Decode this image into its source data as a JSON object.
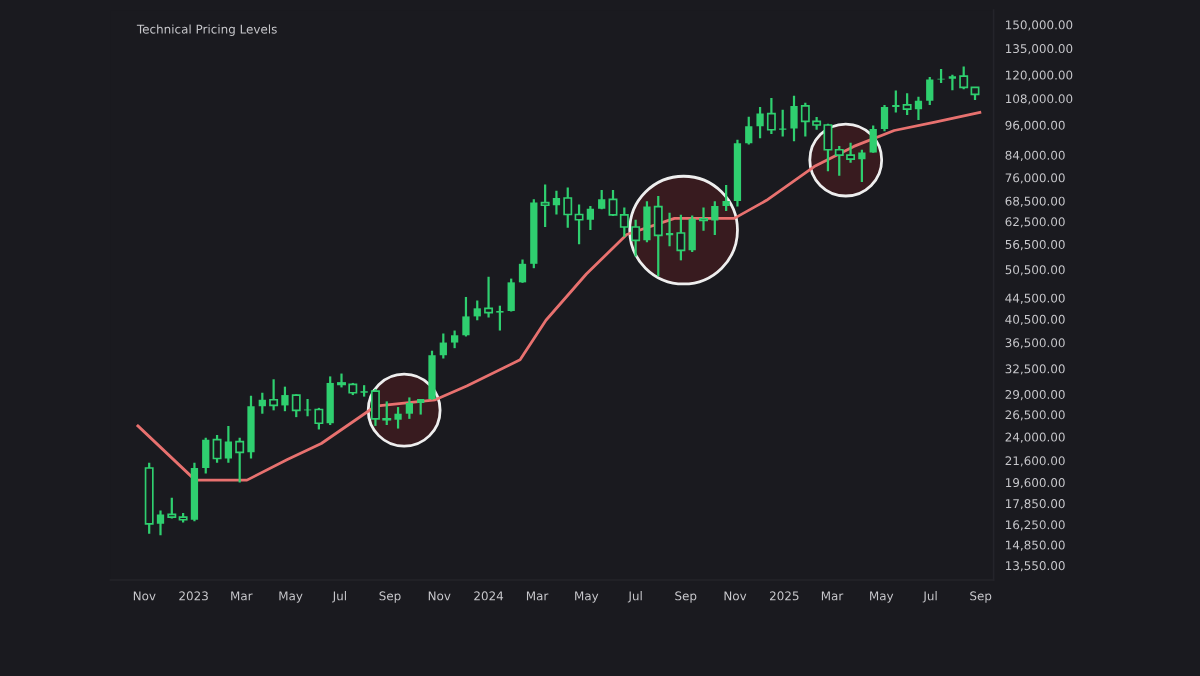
{
  "chart_data": {
    "type": "candlestick",
    "title": "Technical Pricing Levels",
    "x": [
      "2022-11-07",
      "2022-11-21",
      "2022-12-05",
      "2022-12-19",
      "2023-01-02",
      "2023-01-16",
      "2023-01-30",
      "2023-02-13",
      "2023-02-27",
      "2023-03-13",
      "2023-03-27",
      "2023-04-10",
      "2023-04-24",
      "2023-05-08",
      "2023-05-22",
      "2023-06-05",
      "2023-06-19",
      "2023-07-03",
      "2023-07-17",
      "2023-07-31",
      "2023-08-14",
      "2023-08-28",
      "2023-09-11",
      "2023-09-25",
      "2023-10-09",
      "2023-10-23",
      "2023-11-06",
      "2023-11-20",
      "2023-12-04",
      "2023-12-18",
      "2024-01-01",
      "2024-01-15",
      "2024-01-29",
      "2024-02-12",
      "2024-02-26",
      "2024-03-11",
      "2024-03-25",
      "2024-04-08",
      "2024-04-22",
      "2024-05-06",
      "2024-05-20",
      "2024-06-03",
      "2024-06-17",
      "2024-07-01",
      "2024-07-15",
      "2024-07-29",
      "2024-08-12",
      "2024-08-26",
      "2024-09-09",
      "2024-09-23",
      "2024-10-07",
      "2024-10-21",
      "2024-11-04",
      "2024-11-18",
      "2024-12-02",
      "2024-12-16",
      "2024-12-30",
      "2025-01-13",
      "2025-01-27",
      "2025-02-10",
      "2025-02-24",
      "2025-03-10",
      "2025-03-24",
      "2025-04-07",
      "2025-04-21",
      "2025-05-05",
      "2025-05-19",
      "2025-06-02",
      "2025-06-16",
      "2025-06-30",
      "2025-07-14",
      "2025-07-28",
      "2025-08-11",
      "2025-08-25"
    ],
    "ohlc": [
      [
        20900,
        21400,
        15600,
        16300
      ],
      [
        16300,
        17300,
        15500,
        17000
      ],
      [
        17000,
        18300,
        16700,
        16800
      ],
      [
        16800,
        17100,
        16400,
        16600
      ],
      [
        16600,
        21400,
        16500,
        20900
      ],
      [
        20900,
        23900,
        20400,
        23700
      ],
      [
        23700,
        24200,
        21400,
        21800
      ],
      [
        21800,
        25200,
        21400,
        23500
      ],
      [
        23500,
        23900,
        19600,
        22400
      ],
      [
        22400,
        28800,
        21800,
        27500
      ],
      [
        27500,
        29200,
        26600,
        28300
      ],
      [
        28300,
        31000,
        27000,
        27600
      ],
      [
        27600,
        30000,
        26900,
        28900
      ],
      [
        28900,
        29000,
        26200,
        27000
      ],
      [
        27000,
        28400,
        26300,
        27100
      ],
      [
        27100,
        27300,
        24800,
        25500
      ],
      [
        25500,
        31400,
        25300,
        30500
      ],
      [
        30500,
        31800,
        29900,
        30300
      ],
      [
        30300,
        30500,
        28900,
        29200
      ],
      [
        29200,
        30200,
        28700,
        29400
      ],
      [
        29400,
        29700,
        25200,
        26000
      ],
      [
        26000,
        28100,
        25300,
        25900
      ],
      [
        25900,
        27400,
        24900,
        26600
      ],
      [
        26600,
        28600,
        26000,
        27900
      ],
      [
        27900,
        28400,
        26500,
        28400
      ],
      [
        28400,
        35200,
        28300,
        34500
      ],
      [
        34500,
        38000,
        34000,
        36500
      ],
      [
        36500,
        38500,
        35600,
        37700
      ],
      [
        37700,
        44700,
        37500,
        41000
      ],
      [
        41000,
        44000,
        40300,
        42500
      ],
      [
        42500,
        48900,
        40800,
        41700
      ],
      [
        41700,
        43000,
        38500,
        42000
      ],
      [
        42000,
        48500,
        41900,
        47700
      ],
      [
        47700,
        52800,
        47600,
        51800
      ],
      [
        51800,
        69000,
        50800,
        68000
      ],
      [
        68000,
        73700,
        61000,
        67200
      ],
      [
        67200,
        71700,
        64500,
        69400
      ],
      [
        69400,
        72700,
        60800,
        64500
      ],
      [
        64500,
        67400,
        56500,
        63000
      ],
      [
        63000,
        67000,
        60200,
        66200
      ],
      [
        66200,
        71900,
        66000,
        69000
      ],
      [
        69000,
        71900,
        64100,
        64400
      ],
      [
        64400,
        66500,
        58400,
        61000
      ],
      [
        61000,
        63000,
        53500,
        57500
      ],
      [
        57500,
        68400,
        57000,
        66800
      ],
      [
        66800,
        70000,
        49000,
        58800
      ],
      [
        58800,
        65000,
        56000,
        59400
      ],
      [
        59400,
        64400,
        52600,
        55000
      ],
      [
        55000,
        64200,
        54600,
        63300
      ],
      [
        63300,
        66500,
        60000,
        62800
      ],
      [
        62800,
        68400,
        58900,
        67000
      ],
      [
        67000,
        73500,
        65500,
        68500
      ],
      [
        68500,
        89900,
        66800,
        88500
      ],
      [
        88500,
        99600,
        88000,
        95500
      ],
      [
        95500,
        104000,
        90500,
        101000
      ],
      [
        101000,
        108300,
        92200,
        94000
      ],
      [
        94000,
        102700,
        91200,
        94500
      ],
      [
        94500,
        109300,
        89300,
        104500
      ],
      [
        104500,
        106000,
        91200,
        97600
      ],
      [
        97600,
        99500,
        94000,
        96000
      ],
      [
        96000,
        96500,
        78200,
        86000
      ],
      [
        86000,
        87500,
        76600,
        84000
      ],
      [
        84000,
        88700,
        81200,
        82500
      ],
      [
        82500,
        86000,
        74500,
        85000
      ],
      [
        85000,
        95800,
        84900,
        94300
      ],
      [
        94300,
        105000,
        93400,
        104000
      ],
      [
        104000,
        111900,
        101500,
        105000
      ],
      [
        105000,
        110600,
        100400,
        103000
      ],
      [
        103000,
        108900,
        98200,
        107000
      ],
      [
        107000,
        118900,
        105000,
        117500
      ],
      [
        117500,
        123200,
        115700,
        118000
      ],
      [
        118000,
        120000,
        112000,
        119300
      ],
      [
        119300,
        124500,
        112500,
        113500
      ],
      [
        113500,
        113700,
        107300,
        110000
      ]
    ],
    "color": "#2fcf6f",
    "series": [
      {
        "type": "line",
        "color": "#e8716f",
        "x": [
          "2022-10-24",
          "2023-01-03",
          "2023-03-08",
          "2023-04-27",
          "2023-06-08",
          "2023-08-14",
          "2023-10-27",
          "2023-12-05",
          "2024-02-09",
          "2024-03-12",
          "2024-05-01",
          "2024-06-20",
          "2024-08-18",
          "2024-10-31",
          "2024-12-10",
          "2025-02-07",
          "2025-03-28",
          "2025-05-17",
          "2025-07-05",
          "2025-08-31"
        ],
        "values": [
          25200,
          19800,
          19800,
          21700,
          23300,
          27500,
          28300,
          30100,
          33800,
          40300,
          49500,
          59000,
          63400,
          63400,
          68700,
          79800,
          87300,
          93700,
          97100,
          101500
        ]
      }
    ],
    "log": "y",
    "xlim": [
      "2022-09-20",
      "2025-09-17"
    ],
    "xticks": [
      {
        "value": "2022-11-01",
        "label": "Nov"
      },
      {
        "value": "2023-01-01",
        "label": "2023"
      },
      {
        "value": "2023-03-01",
        "label": "Mar"
      },
      {
        "value": "2023-05-01",
        "label": "May"
      },
      {
        "value": "2023-07-01",
        "label": "Jul"
      },
      {
        "value": "2023-09-01",
        "label": "Sep"
      },
      {
        "value": "2023-11-01",
        "label": "Nov"
      },
      {
        "value": "2024-01-01",
        "label": "2024"
      },
      {
        "value": "2024-03-01",
        "label": "Mar"
      },
      {
        "value": "2024-05-01",
        "label": "May"
      },
      {
        "value": "2024-07-01",
        "label": "Jul"
      },
      {
        "value": "2024-09-01",
        "label": "Sep"
      },
      {
        "value": "2024-11-01",
        "label": "Nov"
      },
      {
        "value": "2025-01-01",
        "label": "2025"
      },
      {
        "value": "2025-03-01",
        "label": "Mar"
      },
      {
        "value": "2025-05-01",
        "label": "May"
      },
      {
        "value": "2025-07-01",
        "label": "Jul"
      },
      {
        "value": "2025-09-01",
        "label": "Sep"
      }
    ],
    "ylim": [
      12700,
      160000
    ],
    "yticks": [
      {
        "value": 13550,
        "label": "13,550.00"
      },
      {
        "value": 14850,
        "label": "14,850.00"
      },
      {
        "value": 16250,
        "label": "16,250.00"
      },
      {
        "value": 17850,
        "label": "17,850.00"
      },
      {
        "value": 19600,
        "label": "19,600.00"
      },
      {
        "value": 21600,
        "label": "21,600.00"
      },
      {
        "value": 24000,
        "label": "24,000.00"
      },
      {
        "value": 26500,
        "label": "26,500.00"
      },
      {
        "value": 29000,
        "label": "29,000.00"
      },
      {
        "value": 32500,
        "label": "32,500.00"
      },
      {
        "value": 36500,
        "label": "36,500.00"
      },
      {
        "value": 40500,
        "label": "40,500.00"
      },
      {
        "value": 44500,
        "label": "44,500.00"
      },
      {
        "value": 50500,
        "label": "50,500.00"
      },
      {
        "value": 56500,
        "label": "56,500.00"
      },
      {
        "value": 62500,
        "label": "62,500.00"
      },
      {
        "value": 68500,
        "label": "68,500.00"
      },
      {
        "value": 76000,
        "label": "76,000.00"
      },
      {
        "value": 84000,
        "label": "84,000.00"
      },
      {
        "value": 96000,
        "label": "96,000.00"
      },
      {
        "value": 108000,
        "label": "108,000.00"
      },
      {
        "value": 120000,
        "label": "120,000.00"
      },
      {
        "value": 135000,
        "label": "135,000.00"
      },
      {
        "value": 150000,
        "label": "150,000.00"
      }
    ],
    "grid": false
  }
}
